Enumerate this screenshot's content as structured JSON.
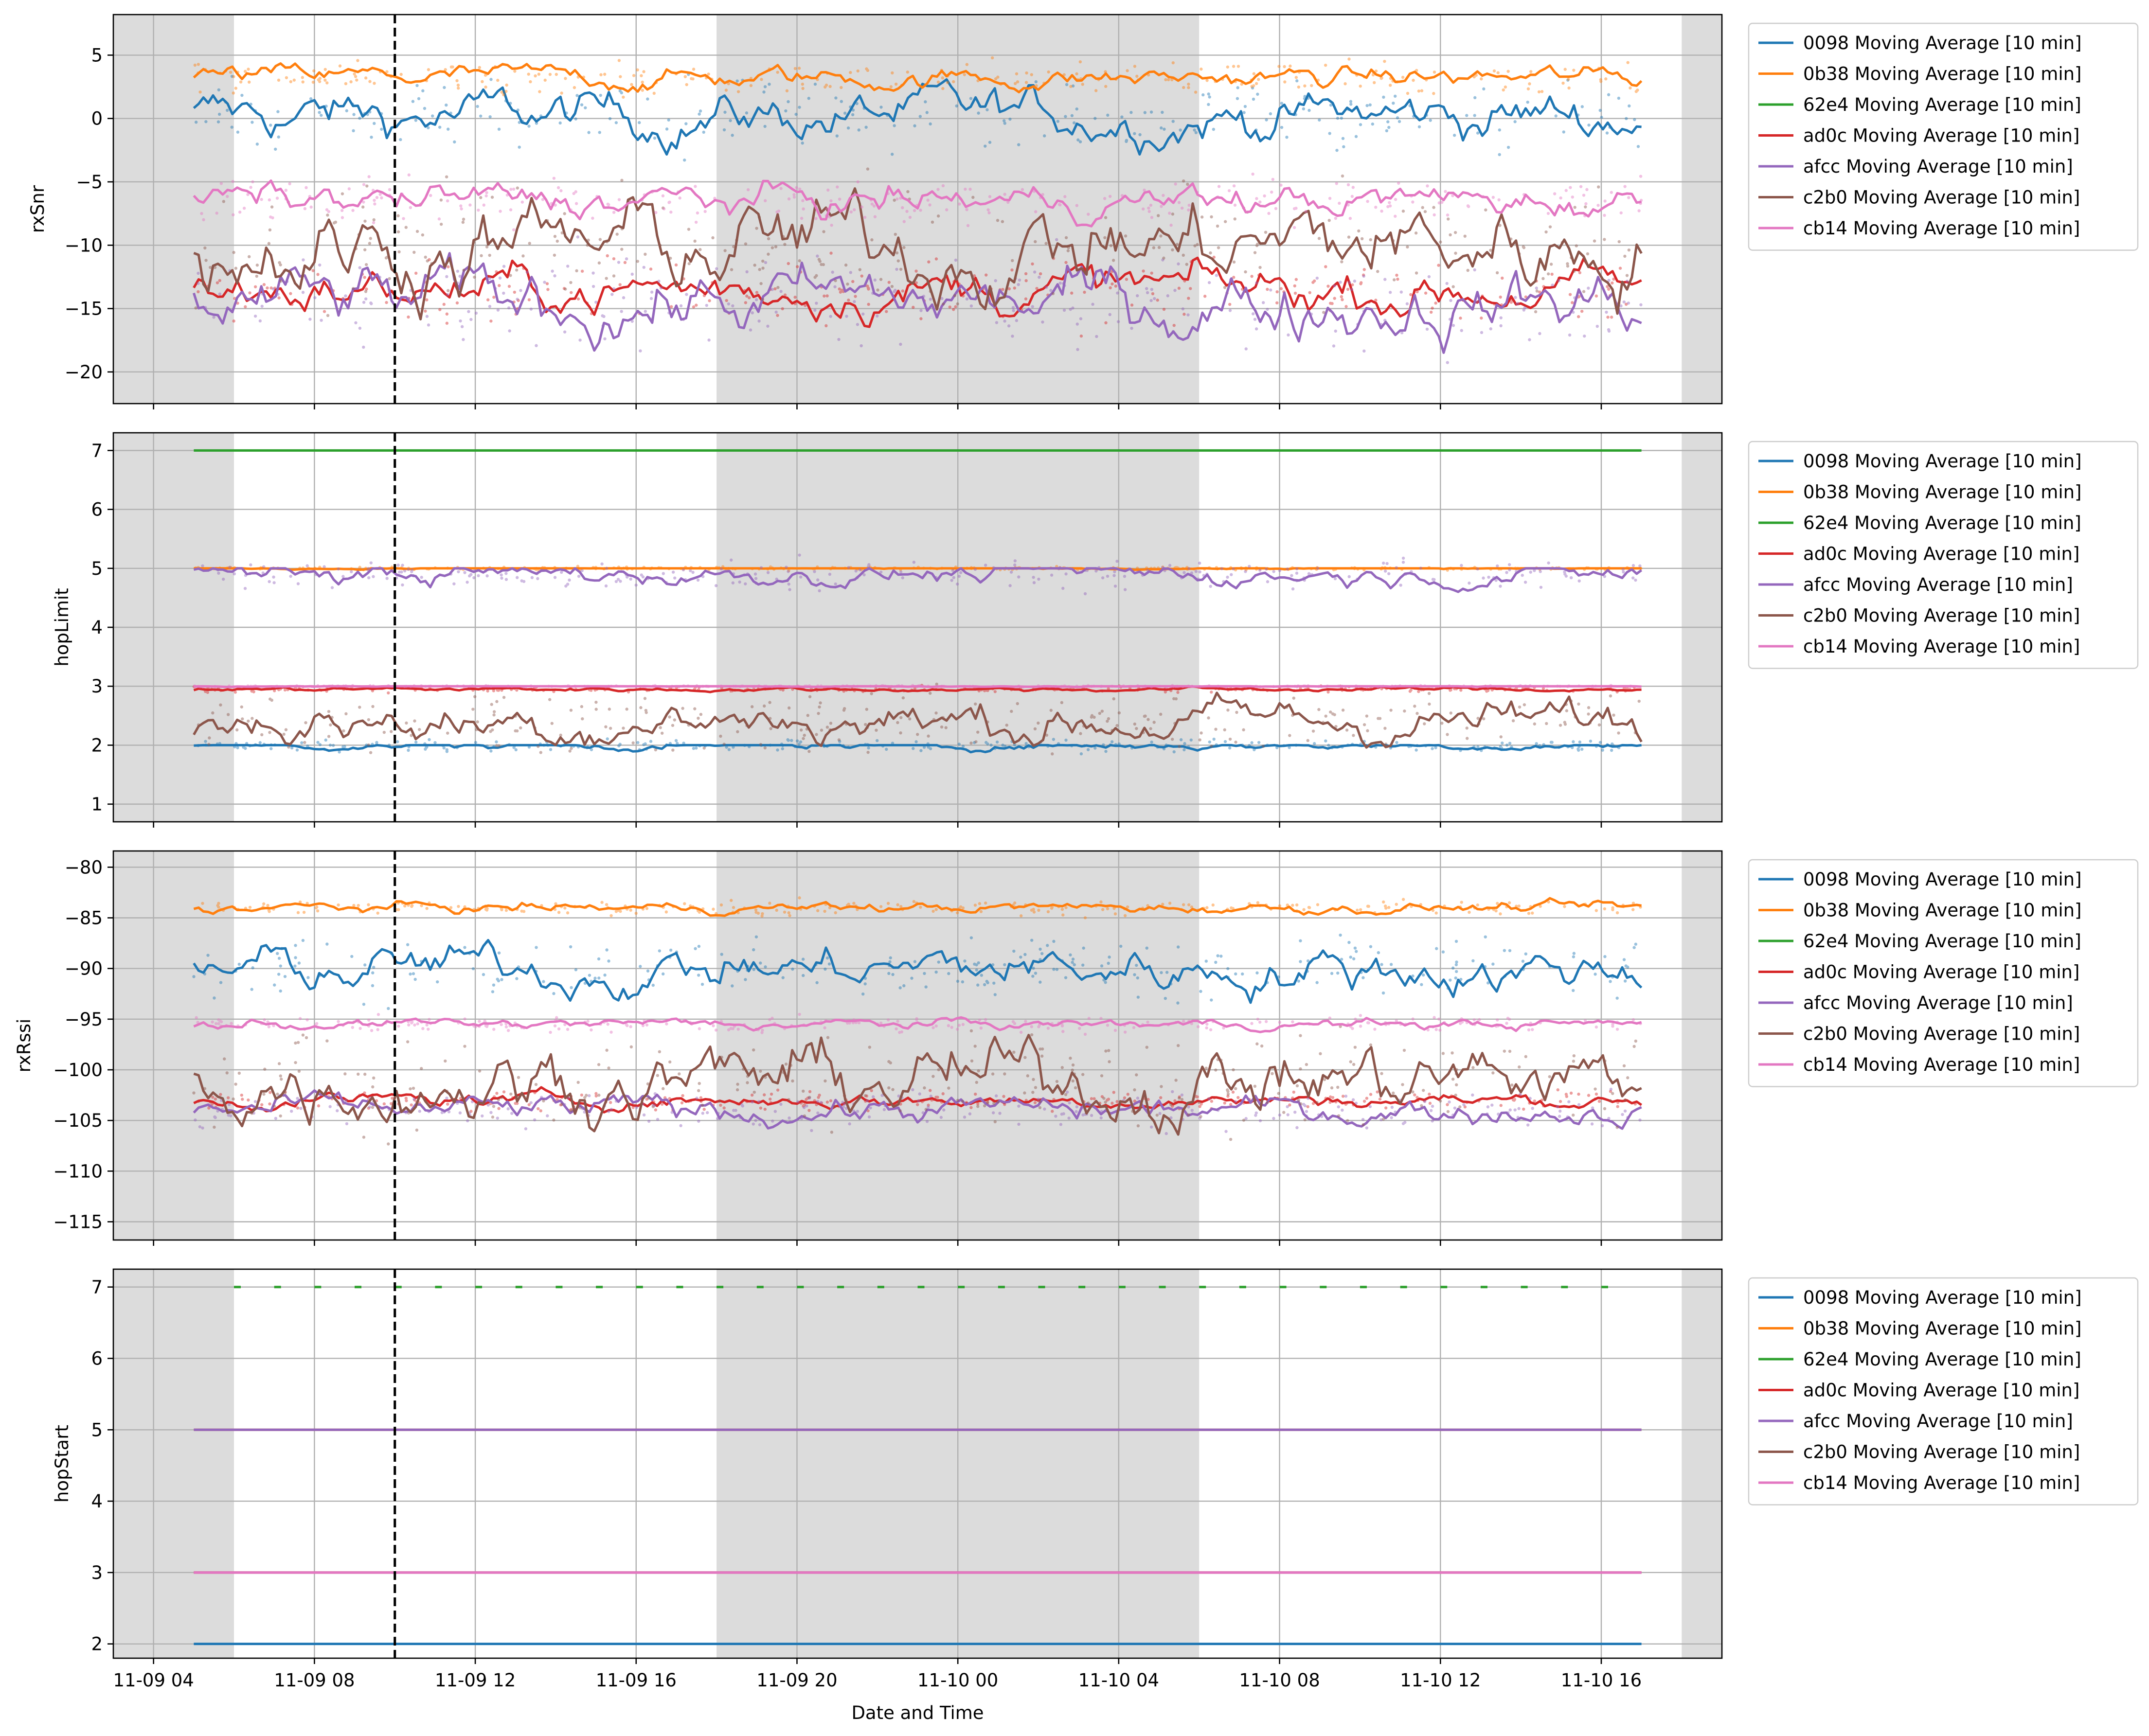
{
  "figure": {
    "xlabel": "Date and Time",
    "x_tick_labels": [
      "11-09 04",
      "11-09 08",
      "11-09 12",
      "11-09 16",
      "11-09 20",
      "11-10 00",
      "11-10 04",
      "11-10 08",
      "11-10 12",
      "11-10 16"
    ],
    "night_shading": [
      {
        "from": "11-09 03:00",
        "to": "11-09 06:00"
      },
      {
        "from": "11-09 18:00",
        "to": "11-10 06:00"
      },
      {
        "from": "11-10 18:00",
        "to": "11-10 19:00"
      }
    ],
    "marker_line": {
      "x": "11-09 10:00",
      "style": "dashed",
      "color": "#000000"
    },
    "series_colors": {
      "0098": "#1f77b4",
      "0b38": "#ff7f0e",
      "62e4": "#2ca02c",
      "ad0c": "#d62728",
      "afcc": "#9467bd",
      "c2b0": "#8c564b",
      "cb14": "#e377c2"
    },
    "legend_position": "outside-right"
  },
  "chart_data": [
    {
      "type": "line",
      "ylabel": "rxSnr",
      "x_range": [
        "11-09 03:00",
        "11-10 19:00"
      ],
      "ylim": [
        -22.5,
        8.2
      ],
      "y_ticks": [
        5,
        0,
        -5,
        -10,
        -15,
        -20
      ],
      "grid": true,
      "raw_points_shown": true,
      "series": [
        {
          "name": "0098 Moving Average [10 min]",
          "key": "0098",
          "approx_level": 0.2,
          "variability": 2.2
        },
        {
          "name": "0b38 Moving Average [10 min]",
          "key": "0b38",
          "approx_level": 3.2,
          "variability": 1.0
        },
        {
          "name": "62e4 Moving Average [10 min]",
          "key": "62e4",
          "approx_level": null,
          "variability": 0
        },
        {
          "name": "ad0c Moving Average [10 min]",
          "key": "ad0c",
          "approx_level": -13.5,
          "variability": 2.0
        },
        {
          "name": "afcc Moving Average [10 min]",
          "key": "afcc",
          "approx_level": -14.5,
          "variability": 3.0
        },
        {
          "name": "c2b0 Moving Average [10 min]",
          "key": "c2b0",
          "approx_level": -10.0,
          "variability": 4.0
        },
        {
          "name": "cb14 Moving Average [10 min]",
          "key": "cb14",
          "approx_level": -6.5,
          "variability": 1.5
        }
      ]
    },
    {
      "type": "line",
      "ylabel": "hopLimit",
      "x_range": [
        "11-09 03:00",
        "11-10 19:00"
      ],
      "ylim": [
        0.7,
        7.3
      ],
      "y_ticks": [
        7,
        6,
        5,
        4,
        3,
        2,
        1
      ],
      "grid": true,
      "raw_points_shown": true,
      "series": [
        {
          "name": "0098 Moving Average [10 min]",
          "key": "0098",
          "approx_level": 2.0,
          "variability": 0.08
        },
        {
          "name": "0b38 Moving Average [10 min]",
          "key": "0b38",
          "approx_level": 5.0,
          "variability": 0.02
        },
        {
          "name": "62e4 Moving Average [10 min]",
          "key": "62e4",
          "approx_level": 7.0,
          "variability": 0
        },
        {
          "name": "ad0c Moving Average [10 min]",
          "key": "ad0c",
          "approx_level": 2.95,
          "variability": 0.04
        },
        {
          "name": "afcc Moving Average [10 min]",
          "key": "afcc",
          "approx_level": 4.9,
          "variability": 0.2
        },
        {
          "name": "c2b0 Moving Average [10 min]",
          "key": "c2b0",
          "approx_level": 2.4,
          "variability": 0.4
        },
        {
          "name": "cb14 Moving Average [10 min]",
          "key": "cb14",
          "approx_level": 3.0,
          "variability": 0.01
        }
      ]
    },
    {
      "type": "line",
      "ylabel": "rxRssi",
      "x_range": [
        "11-09 03:00",
        "11-10 19:00"
      ],
      "ylim": [
        -116.8,
        -78.4
      ],
      "y_ticks": [
        -80,
        -85,
        -90,
        -95,
        -100,
        -105,
        -110,
        -115
      ],
      "grid": true,
      "raw_points_shown": true,
      "series": [
        {
          "name": "0098 Moving Average [10 min]",
          "key": "0098",
          "approx_level": -90.0,
          "variability": 2.5
        },
        {
          "name": "0b38 Moving Average [10 min]",
          "key": "0b38",
          "approx_level": -84.0,
          "variability": 0.6
        },
        {
          "name": "62e4 Moving Average [10 min]",
          "key": "62e4",
          "approx_level": null,
          "variability": 0
        },
        {
          "name": "ad0c Moving Average [10 min]",
          "key": "ad0c",
          "approx_level": -103.0,
          "variability": 0.8
        },
        {
          "name": "afcc Moving Average [10 min]",
          "key": "afcc",
          "approx_level": -104.0,
          "variability": 1.5
        },
        {
          "name": "c2b0 Moving Average [10 min]",
          "key": "c2b0",
          "approx_level": -101.0,
          "variability": 4.0
        },
        {
          "name": "cb14 Moving Average [10 min]",
          "key": "cb14",
          "approx_level": -95.5,
          "variability": 0.6
        }
      ]
    },
    {
      "type": "line",
      "ylabel": "hopStart",
      "x_range": [
        "11-09 03:00",
        "11-10 19:00"
      ],
      "ylim": [
        1.8,
        7.25
      ],
      "y_ticks": [
        7,
        6,
        5,
        4,
        3,
        2
      ],
      "grid": true,
      "raw_points_shown": true,
      "series": [
        {
          "name": "0098 Moving Average [10 min]",
          "key": "0098",
          "approx_level": 2,
          "variability": 0
        },
        {
          "name": "0b38 Moving Average [10 min]",
          "key": "0b38",
          "approx_level": 5,
          "variability": 0
        },
        {
          "name": "62e4 Moving Average [10 min]",
          "key": "62e4",
          "approx_level": 7,
          "variability": 0,
          "raw_only": true
        },
        {
          "name": "ad0c Moving Average [10 min]",
          "key": "ad0c",
          "approx_level": 3,
          "variability": 0
        },
        {
          "name": "afcc Moving Average [10 min]",
          "key": "afcc",
          "approx_level": 5,
          "variability": 0
        },
        {
          "name": "c2b0 Moving Average [10 min]",
          "key": "c2b0",
          "approx_level": 3,
          "variability": 0
        },
        {
          "name": "cb14 Moving Average [10 min]",
          "key": "cb14",
          "approx_level": 3,
          "variability": 0
        }
      ]
    }
  ]
}
